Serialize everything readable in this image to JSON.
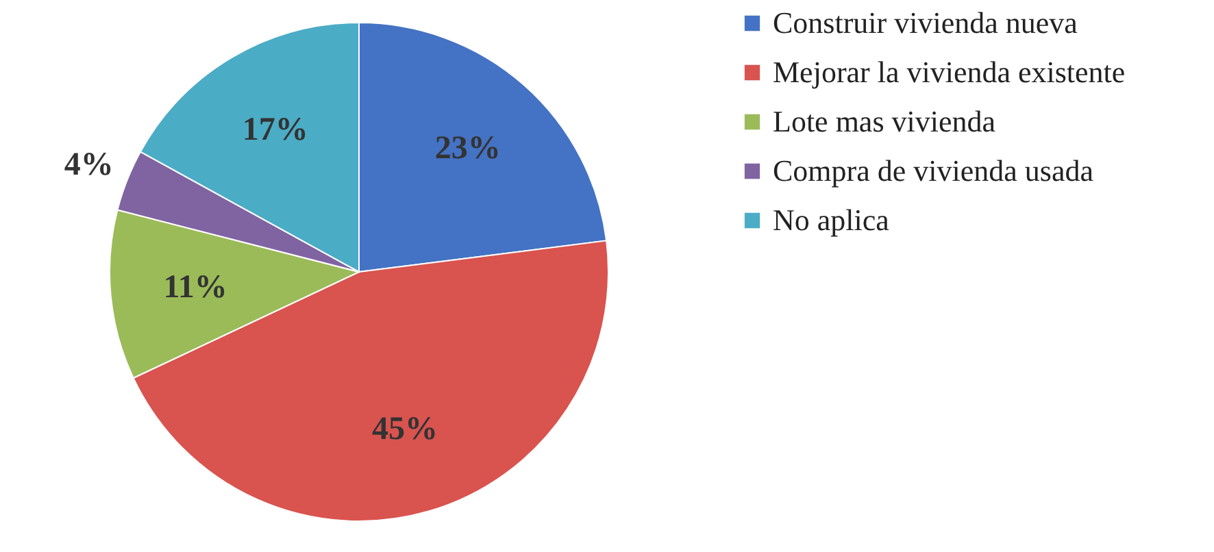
{
  "chart_data": {
    "type": "pie",
    "categories": [
      "Construir vivienda nueva",
      "Mejorar la vivienda existente",
      "Lote mas vivienda",
      "Compra de vivienda usada",
      "No aplica"
    ],
    "values": [
      23,
      45,
      11,
      4,
      17
    ],
    "colors": [
      "#4472c4",
      "#d9534f",
      "#9bbb59",
      "#8064a2",
      "#4bacc6"
    ],
    "value_labels": [
      "23%",
      "45%",
      "11%",
      "4%",
      "17%"
    ],
    "legend": "right"
  }
}
